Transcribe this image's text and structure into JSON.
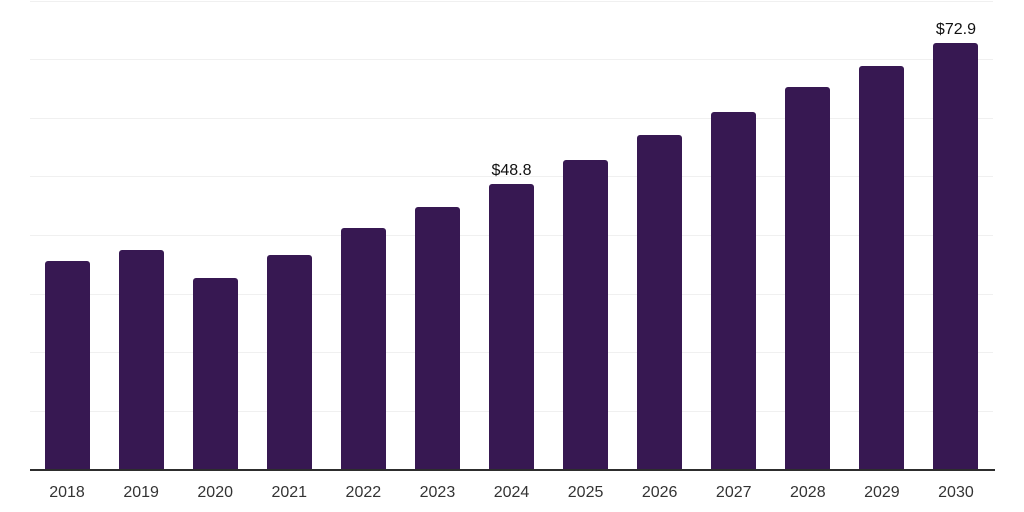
{
  "chart_data": {
    "type": "bar",
    "title": "",
    "xlabel": "",
    "ylabel": "",
    "categories": [
      "2018",
      "2019",
      "2020",
      "2021",
      "2022",
      "2023",
      "2024",
      "2025",
      "2026",
      "2027",
      "2028",
      "2029",
      "2030"
    ],
    "values": [
      35.6,
      37.5,
      32.7,
      36.7,
      41.2,
      44.9,
      48.8,
      52.9,
      57.1,
      61.0,
      65.3,
      69.0,
      72.9
    ],
    "value_labels": [
      null,
      null,
      null,
      null,
      null,
      null,
      "$48.8",
      null,
      null,
      null,
      null,
      null,
      "$72.9"
    ],
    "ylim": [
      0,
      80
    ],
    "grid_step": 10,
    "grid": true,
    "legend_position": "none",
    "y_tick_labels_visible": false
  },
  "colors": {
    "bar": "#371852",
    "gridline": "#f0f0f0",
    "axis_line": "#2d2d2d",
    "value_label": "#111111",
    "tick_label": "#333333",
    "background": "#ffffff"
  }
}
